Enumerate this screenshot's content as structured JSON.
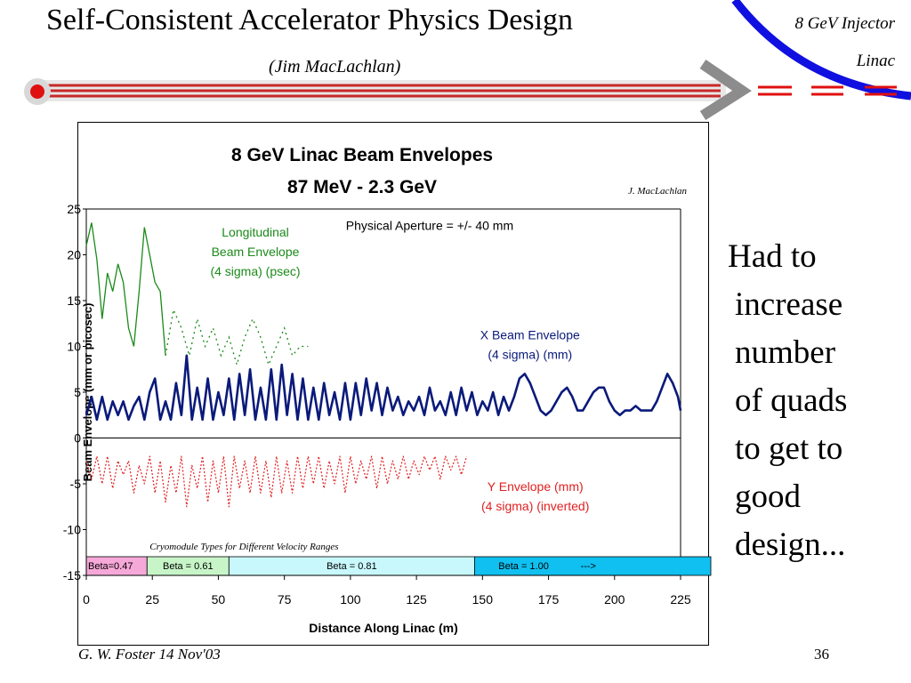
{
  "slide": {
    "title": "Self-Consistent Accelerator Physics Design",
    "subtitle": "(Jim MacLachlan)",
    "corner_line1": "8 GeV Injector",
    "corner_line2": "Linac",
    "side_text": [
      "Had to",
      "increase",
      "number",
      "of quads",
      "to get to",
      "good",
      "design..."
    ],
    "footer_left": "G. W. Foster   14 Nov'03",
    "page_number": "36"
  },
  "colors": {
    "green": "#1a8a1a",
    "blue": "#0a1a7a",
    "red": "#e02020",
    "header_line": "#c82828",
    "arc_blue": "#1010e0",
    "beta047": "#f6a8d8",
    "beta061": "#c8f5c8",
    "beta081": "#c8f8fc",
    "beta100": "#10c0f0"
  },
  "chart_data": {
    "type": "line",
    "title": "8 GeV Linac Beam Envelopes",
    "subtitle": "87 MeV - 2.3 GeV",
    "credit": "J. MacLachlan",
    "xlabel": "Distance Along Linac (m)",
    "ylabel": "Beam Envelope (mm or picosec)",
    "xlim": [
      0,
      225
    ],
    "ylim": [
      -15,
      25
    ],
    "xticks": [
      0,
      25,
      50,
      75,
      100,
      125,
      150,
      175,
      200,
      225
    ],
    "yticks": [
      25,
      20,
      15,
      10,
      5,
      0,
      -5,
      -10,
      -15
    ],
    "aperture_note": "Physical Aperture = +/- 40 mm",
    "cryomodule_title": "Cryomodule Types for Different Velocity Ranges",
    "cryomodules": [
      {
        "label": "Beta=0.47",
        "x0": 0,
        "x1": 23,
        "color": "#f6a8d8"
      },
      {
        "label": "Beta = 0.61",
        "x0": 23,
        "x1": 54,
        "color": "#c8f5c8"
      },
      {
        "label": "Beta = 0.81",
        "x0": 54,
        "x1": 147,
        "color": "#c8f8fc"
      },
      {
        "label": "Beta = 1.00",
        "x0": 147,
        "x1": 237,
        "color": "#10c0f0",
        "arrow": "--->"
      }
    ],
    "series": [
      {
        "name": "Longitudinal Beam Envelope (4 sigma) (psec)",
        "label_lines": [
          "Longitudinal",
          "Beam Envelope",
          "(4 sigma) (psec)"
        ],
        "color": "#1a8a1a",
        "style": "solid-then-dotted",
        "x": [
          0,
          2,
          4,
          6,
          8,
          10,
          12,
          14,
          16,
          18,
          20,
          22,
          24,
          26,
          28,
          30,
          33,
          36,
          39,
          42,
          45,
          48,
          51,
          54,
          57,
          60,
          63,
          66,
          69,
          72,
          75,
          78,
          81,
          84
        ],
        "y": [
          21,
          23.5,
          19.5,
          13,
          18,
          16,
          19,
          17,
          12,
          10,
          16,
          23,
          20,
          17,
          16,
          9,
          14,
          12,
          9,
          13,
          10,
          12,
          9,
          11,
          8,
          11,
          13,
          11,
          8,
          10,
          12,
          9,
          10,
          10
        ]
      },
      {
        "name": "X Beam Envelope (4 sigma) (mm)",
        "label_lines": [
          "X Beam Envelope",
          "(4 sigma) (mm)"
        ],
        "color": "#0a1a7a",
        "style": "solid",
        "x": [
          0,
          2,
          4,
          6,
          8,
          10,
          12,
          14,
          16,
          18,
          20,
          22,
          24,
          26,
          28,
          30,
          32,
          34,
          36,
          38,
          40,
          42,
          44,
          46,
          48,
          50,
          52,
          54,
          56,
          58,
          60,
          62,
          64,
          66,
          68,
          70,
          72,
          74,
          76,
          78,
          80,
          82,
          84,
          86,
          88,
          90,
          92,
          94,
          96,
          98,
          100,
          102,
          104,
          106,
          108,
          110,
          112,
          114,
          116,
          118,
          120,
          122,
          124,
          126,
          128,
          130,
          132,
          134,
          136,
          138,
          140,
          142,
          144,
          146,
          148,
          150,
          152,
          154,
          156,
          158,
          160,
          162,
          164,
          166,
          168,
          170,
          172,
          174,
          176,
          178,
          180,
          182,
          184,
          186,
          188,
          190,
          192,
          194,
          196,
          198,
          200,
          202,
          204,
          206,
          208,
          210,
          212,
          214,
          216,
          218,
          220,
          222,
          224,
          225
        ],
        "y": [
          2.5,
          4.5,
          2,
          4.5,
          2,
          4,
          2.5,
          4,
          2,
          3.5,
          4.5,
          2,
          5,
          6.5,
          2,
          4,
          2,
          6,
          2.5,
          9,
          2,
          5.5,
          2,
          6.5,
          2,
          5,
          2.5,
          6.5,
          2,
          7,
          2.5,
          7.5,
          2,
          5.5,
          2,
          7.5,
          2,
          8,
          2.5,
          7,
          2,
          6.5,
          2,
          5.5,
          2,
          6,
          2.5,
          5,
          2,
          6,
          2,
          6,
          2.5,
          6.5,
          3,
          6,
          2.5,
          5.5,
          3,
          4.5,
          2.5,
          4,
          3,
          4.5,
          2.5,
          5.5,
          3,
          4,
          2.5,
          5,
          2.5,
          5.5,
          3,
          5,
          2.5,
          4,
          3,
          5,
          2.5,
          4.5,
          3,
          4.5,
          6.5,
          7,
          6,
          4.5,
          3,
          2.5,
          3,
          4,
          5,
          5.5,
          4.5,
          3,
          3,
          4,
          5,
          5.5,
          5.5,
          4,
          3,
          2.5,
          3,
          3,
          3.5,
          3,
          3,
          3,
          4,
          5.5,
          7,
          6,
          4.5,
          3
        ]
      },
      {
        "name": "Y Envelope (mm) (4 sigma) (inverted)",
        "label_lines": [
          "Y Envelope (mm)",
          "(4 sigma) (inverted)"
        ],
        "color": "#e02020",
        "style": "dotted",
        "x": [
          0,
          2,
          4,
          6,
          8,
          10,
          12,
          14,
          16,
          18,
          20,
          22,
          24,
          26,
          28,
          30,
          32,
          34,
          36,
          38,
          40,
          42,
          44,
          46,
          48,
          50,
          52,
          54,
          56,
          58,
          60,
          62,
          64,
          66,
          68,
          70,
          72,
          74,
          76,
          78,
          80,
          82,
          84,
          86,
          88,
          90,
          92,
          94,
          96,
          98,
          100,
          102,
          104,
          106,
          108,
          110,
          112,
          114,
          116,
          118,
          120,
          122,
          124,
          126,
          128,
          130,
          132,
          134,
          136,
          138,
          140,
          142,
          144
        ],
        "y": [
          -2.5,
          -4.5,
          -2,
          -5,
          -2,
          -5.5,
          -2.5,
          -4,
          -2.5,
          -6,
          -3,
          -5,
          -2,
          -6,
          -2.5,
          -7,
          -3,
          -6,
          -2,
          -7.5,
          -3,
          -5.5,
          -2,
          -7,
          -2.5,
          -6,
          -2,
          -7.5,
          -2,
          -5.5,
          -2.5,
          -6,
          -2,
          -6,
          -2.5,
          -6.5,
          -2,
          -6,
          -2.5,
          -6,
          -2,
          -5.5,
          -2,
          -5,
          -2,
          -5.5,
          -2.5,
          -5,
          -2,
          -6,
          -2,
          -5,
          -2.5,
          -4.5,
          -2,
          -5.5,
          -2,
          -5,
          -2.5,
          -4.5,
          -2,
          -4.5,
          -2.5,
          -4,
          -2,
          -3.5,
          -2,
          -4.5,
          -2,
          -3.5,
          -2,
          -4,
          -2
        ]
      }
    ],
    "legend_placement": "inline labels",
    "grid": false
  }
}
